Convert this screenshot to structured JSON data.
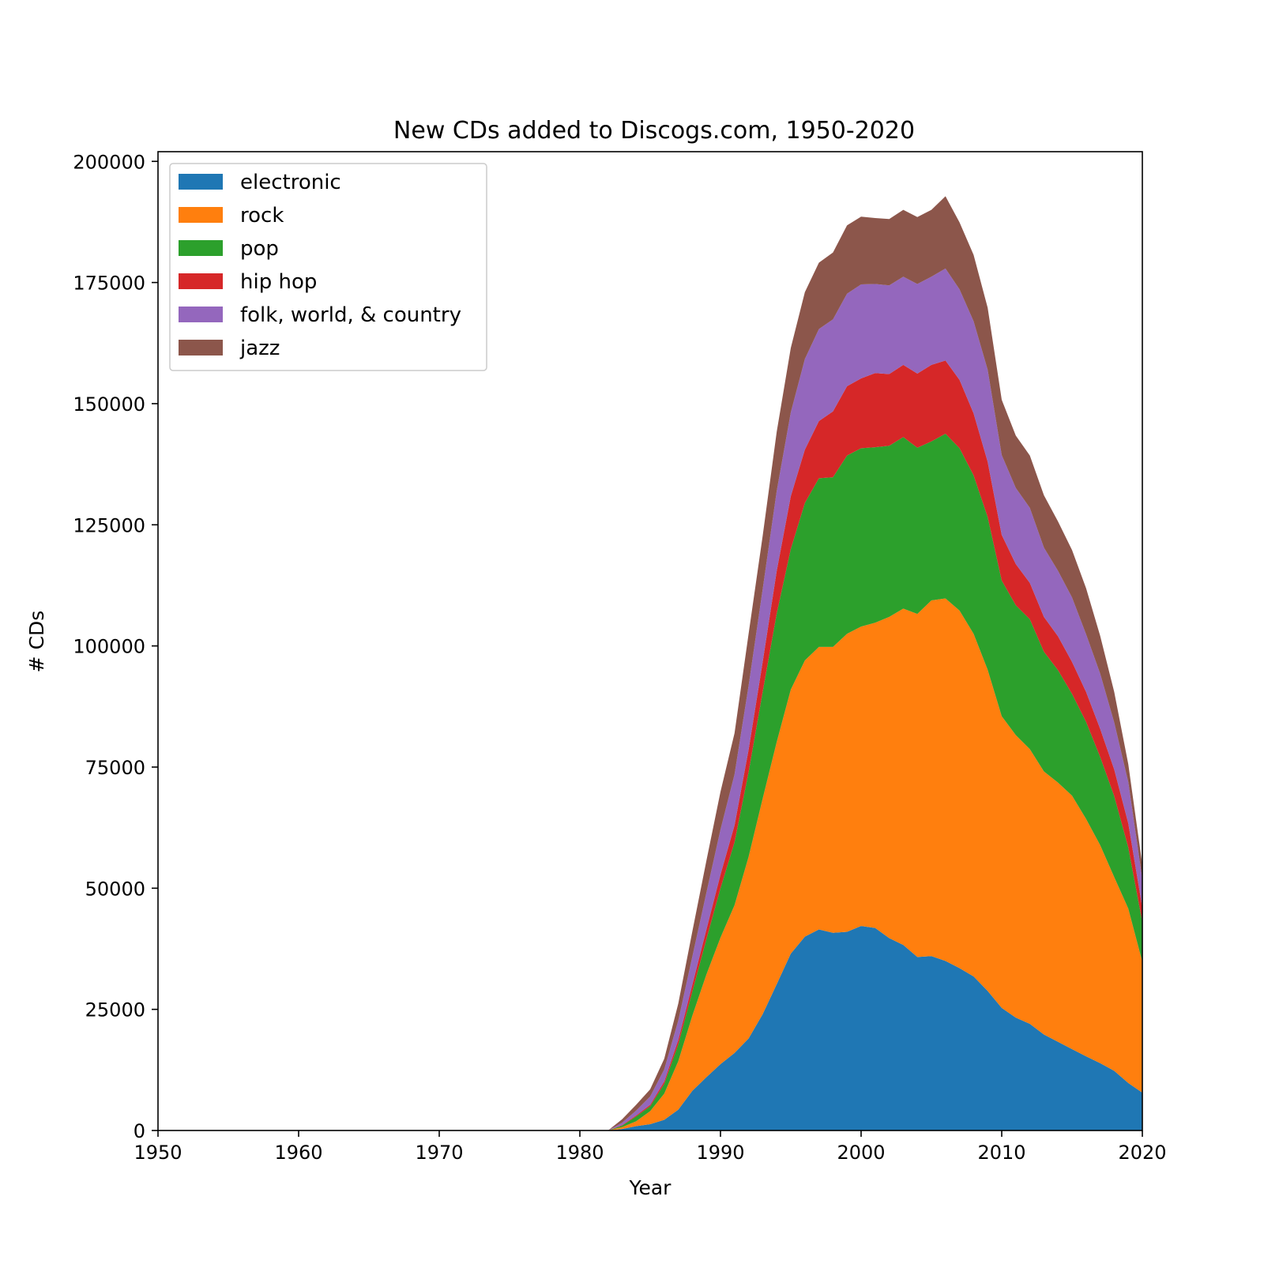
{
  "chart_data": {
    "type": "area",
    "stacked": true,
    "title": "New CDs added to Discogs.com, 1950-2020",
    "xlabel": "Year",
    "ylabel": "# CDs",
    "xlim": [
      1950,
      2020
    ],
    "ylim": [
      0,
      202000
    ],
    "x_ticks": [
      "1950",
      "1960",
      "1970",
      "1980",
      "1990",
      "2000",
      "2010",
      "2020"
    ],
    "y_ticks": [
      "0",
      "25000",
      "50000",
      "75000",
      "100000",
      "125000",
      "150000",
      "175000",
      "200000"
    ],
    "grid": false,
    "legend_position": "top-left",
    "x": [
      1982,
      1983,
      1984,
      1985,
      1986,
      1987,
      1988,
      1989,
      1990,
      1991,
      1992,
      1993,
      1994,
      1995,
      1996,
      1997,
      1998,
      1999,
      2000,
      2001,
      2002,
      2003,
      2004,
      2005,
      2006,
      2007,
      2008,
      2009,
      2010,
      2011,
      2012,
      2013,
      2014,
      2015,
      2016,
      2017,
      2018,
      2019,
      2020
    ],
    "series": [
      {
        "name": "electronic",
        "color": "#1f77b4",
        "values": [
          0,
          300,
          900,
          1300,
          2200,
          4300,
          8200,
          11000,
          13700,
          16000,
          19000,
          24000,
          30200,
          36500,
          40000,
          41500,
          40800,
          41000,
          42200,
          41800,
          39700,
          38300,
          35800,
          36000,
          35000,
          33500,
          31800,
          28800,
          25300,
          23300,
          22000,
          19800,
          18300,
          16800,
          15300,
          13900,
          12300,
          9800,
          7800
        ]
      },
      {
        "name": "rock",
        "color": "#ff7f0e",
        "values": [
          0,
          400,
          1000,
          2700,
          5400,
          10000,
          15500,
          21200,
          26100,
          30500,
          37500,
          44500,
          50000,
          54500,
          57000,
          58300,
          59000,
          61500,
          61800,
          63000,
          66300,
          69400,
          70800,
          73400,
          74800,
          73800,
          70700,
          66300,
          60200,
          58300,
          56700,
          54300,
          53500,
          52300,
          49000,
          45000,
          40000,
          36000,
          27000
        ]
      },
      {
        "name": "pop",
        "color": "#2ca02c",
        "values": [
          0,
          300,
          1000,
          1000,
          2000,
          3500,
          5000,
          7300,
          10200,
          13000,
          17500,
          22000,
          26500,
          29000,
          32500,
          34800,
          35000,
          36800,
          36800,
          36200,
          35300,
          35400,
          34300,
          32800,
          34000,
          33500,
          32700,
          31500,
          28000,
          26800,
          26800,
          24700,
          23200,
          21000,
          20000,
          18200,
          16700,
          12600,
          8200
        ]
      },
      {
        "name": "hip hop",
        "color": "#d62728",
        "values": [
          0,
          100,
          200,
          300,
          500,
          900,
          1400,
          2000,
          2800,
          3500,
          4600,
          6200,
          8800,
          10900,
          11000,
          11800,
          13600,
          14300,
          14400,
          15300,
          14800,
          14900,
          15300,
          15800,
          15100,
          14100,
          12800,
          11400,
          9400,
          8500,
          7500,
          7200,
          7000,
          6600,
          6200,
          5800,
          5500,
          5000,
          3000
        ]
      },
      {
        "name": "folk, world, & country",
        "color": "#9467bd",
        "values": [
          0,
          500,
          1000,
          1700,
          2500,
          4000,
          5800,
          7600,
          9300,
          10500,
          13200,
          15000,
          16500,
          17300,
          18700,
          19000,
          19000,
          19100,
          19400,
          18400,
          18300,
          18200,
          18500,
          18200,
          19000,
          18700,
          19000,
          19000,
          16500,
          15700,
          15500,
          14300,
          13500,
          13300,
          11900,
          11400,
          9700,
          8500,
          5800
        ]
      },
      {
        "name": "jazz",
        "color": "#8c564b",
        "values": [
          0,
          700,
          1200,
          1500,
          2200,
          3500,
          5200,
          6600,
          7800,
          8500,
          10700,
          11000,
          12200,
          13300,
          13800,
          13700,
          13800,
          14100,
          14000,
          13600,
          13700,
          13800,
          13800,
          13800,
          14900,
          13800,
          13700,
          12800,
          11400,
          10800,
          10800,
          10800,
          10200,
          9800,
          9500,
          7800,
          6300,
          3700,
          3000
        ]
      }
    ]
  }
}
